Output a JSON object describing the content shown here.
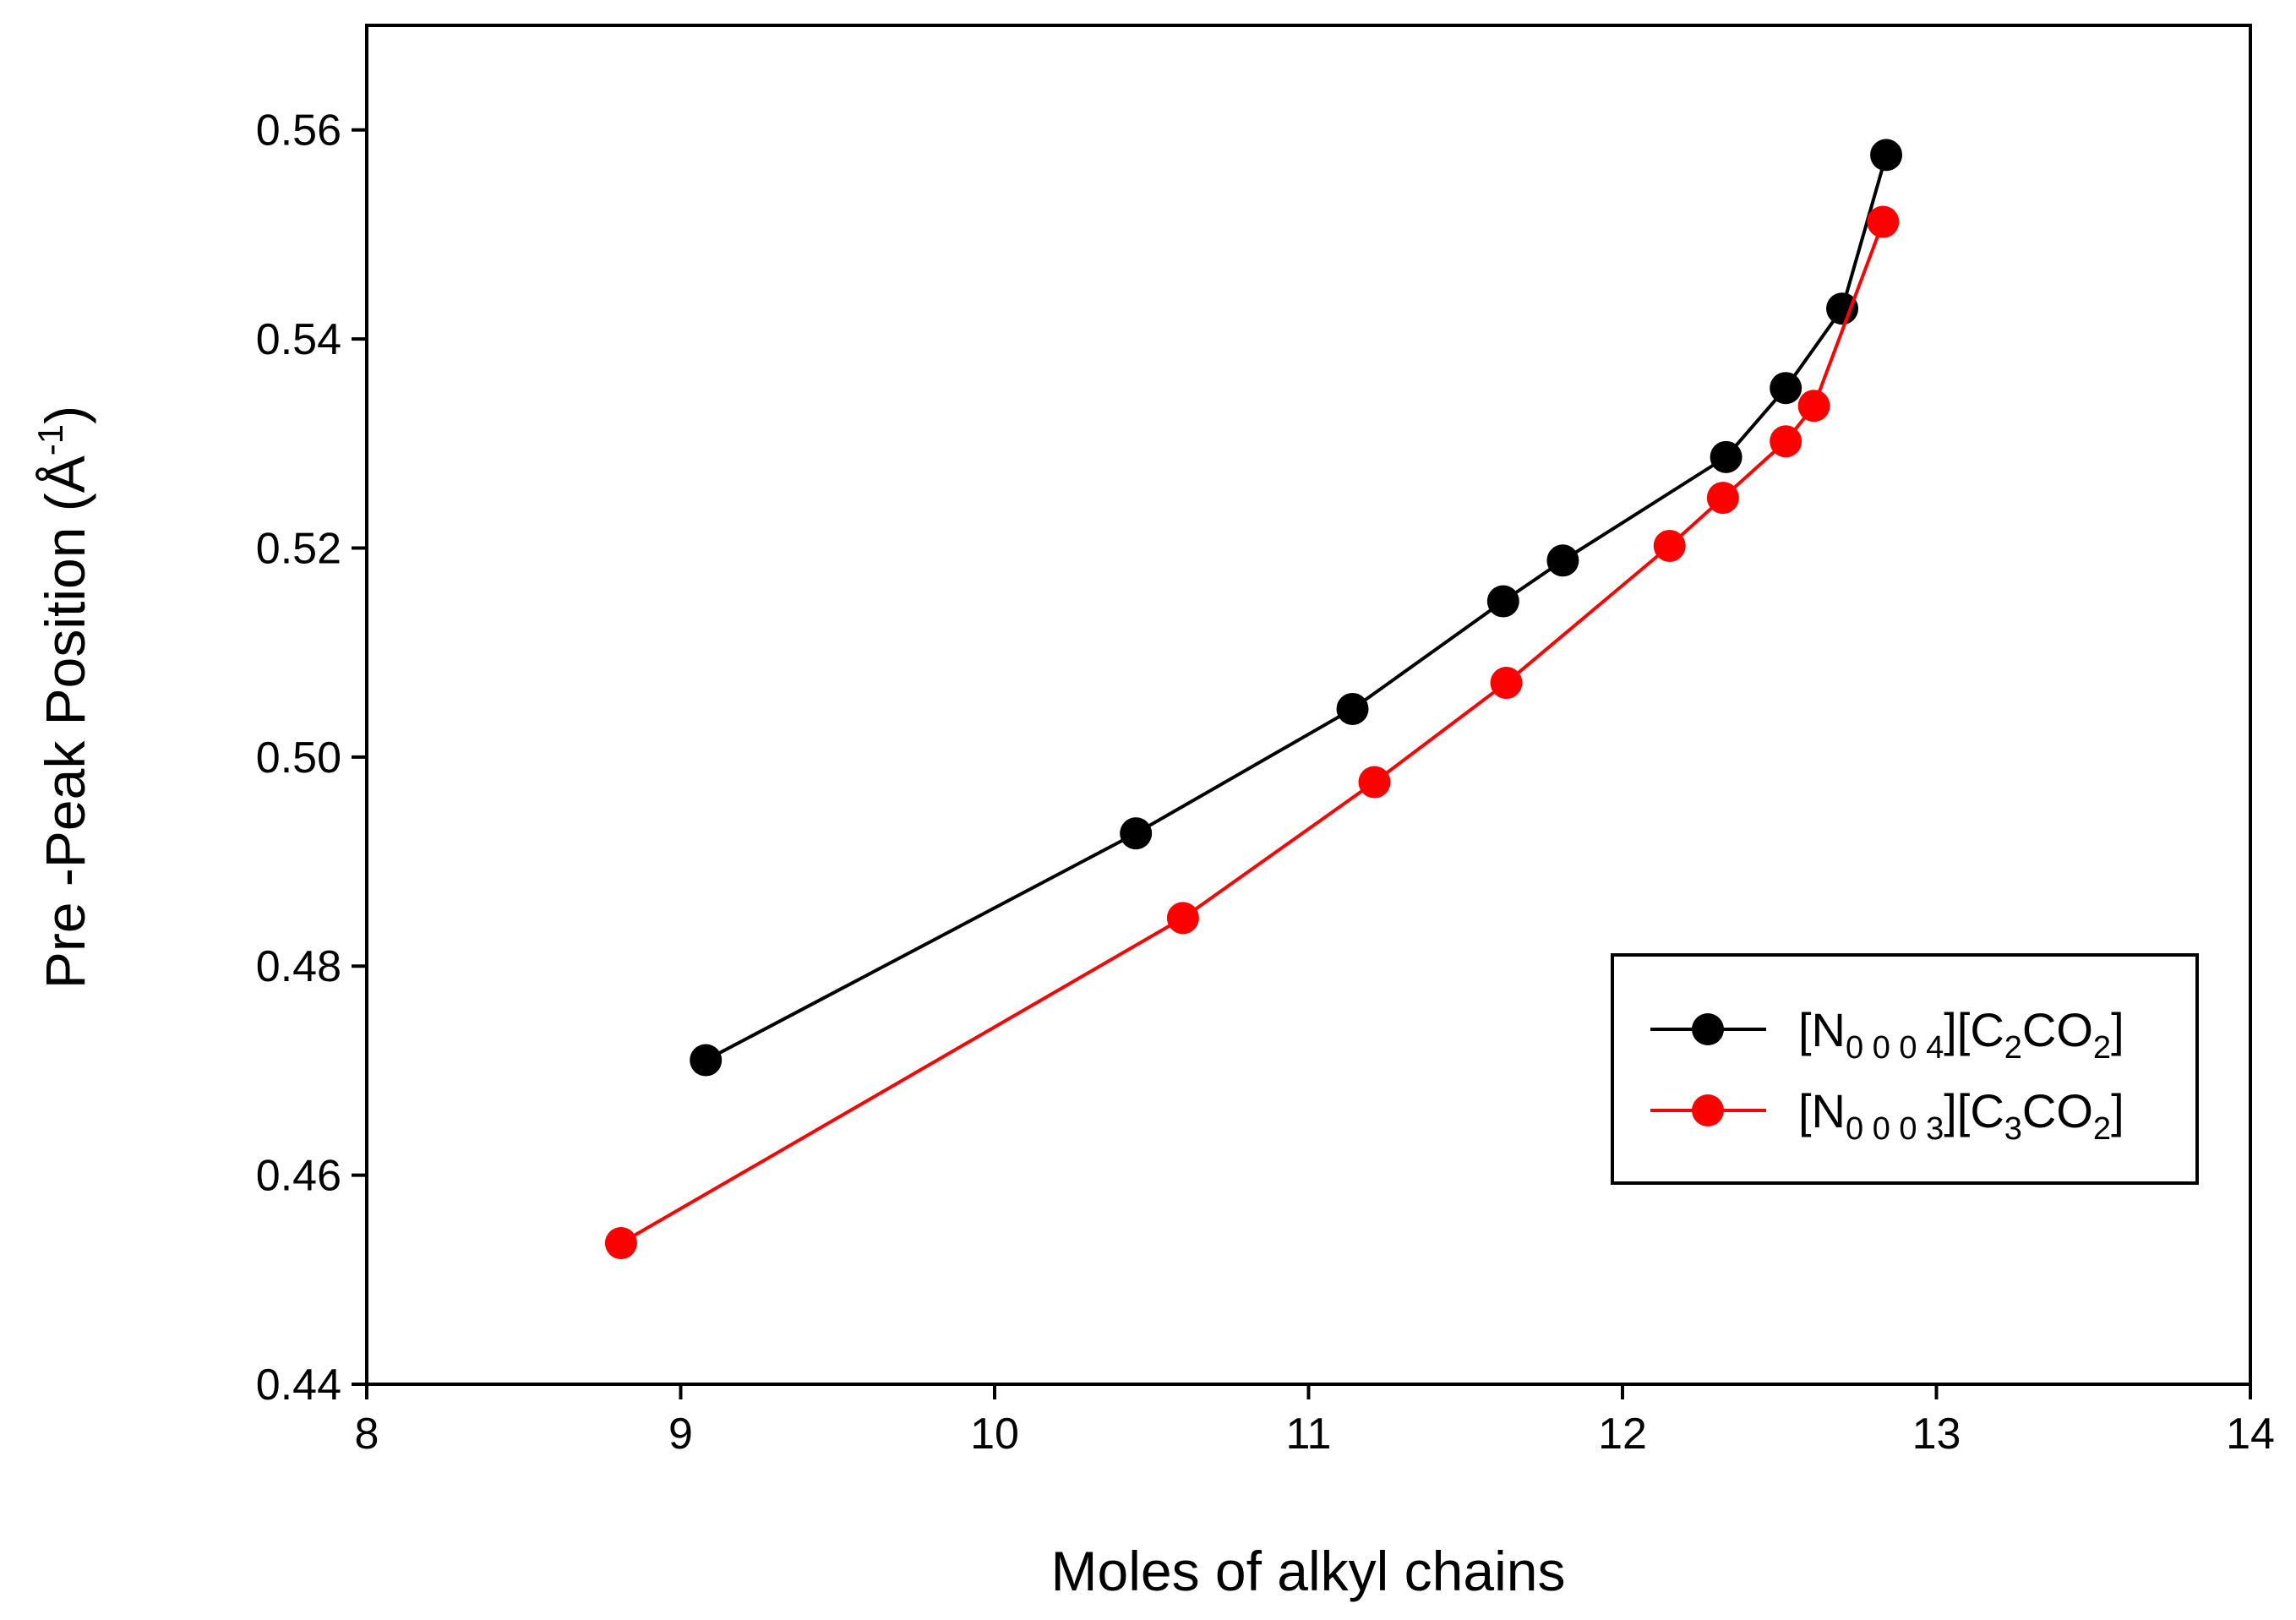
{
  "chart_data": {
    "type": "line",
    "xlabel": "Moles of alkyl chains",
    "ylabel_main": "Pre -Peak Position (Å",
    "ylabel_sup": "-1",
    "ylabel_close": ")",
    "xlim": [
      8,
      14
    ],
    "ylim": [
      0.44,
      0.57
    ],
    "xticks": [
      8,
      9,
      10,
      11,
      12,
      13,
      14
    ],
    "yticks": [
      0.44,
      0.46,
      0.48,
      0.5,
      0.52,
      0.54,
      0.56
    ],
    "xtick_labels": [
      "8",
      "9",
      "10",
      "11",
      "12",
      "13",
      "14"
    ],
    "ytick_labels": [
      "0.44",
      "0.46",
      "0.48",
      "0.50",
      "0.52",
      "0.54",
      "0.56"
    ],
    "grid": false,
    "legend_position": "right",
    "series": [
      {
        "name_parts": [
          "[N",
          "0 0 0 4",
          "][C",
          "2",
          "CO",
          "2",
          "]"
        ],
        "color": "#000000",
        "x": [
          9.08,
          10.45,
          11.14,
          11.62,
          11.81,
          12.33,
          12.52,
          12.7,
          12.84
        ],
        "y": [
          0.471,
          0.4927,
          0.5046,
          0.5149,
          0.5188,
          0.5287,
          0.5353,
          0.5429,
          0.5576
        ]
      },
      {
        "name_parts": [
          "[N",
          "0 0 0 3",
          "][C",
          "3",
          "CO",
          "2",
          "]"
        ],
        "color": "#ff0000",
        "x": [
          8.81,
          10.6,
          11.21,
          11.63,
          12.15,
          12.32,
          12.52,
          12.61,
          12.83
        ],
        "y": [
          0.4535,
          0.4846,
          0.4976,
          0.5071,
          0.5202,
          0.5248,
          0.5302,
          0.5336,
          0.5512
        ]
      }
    ]
  }
}
